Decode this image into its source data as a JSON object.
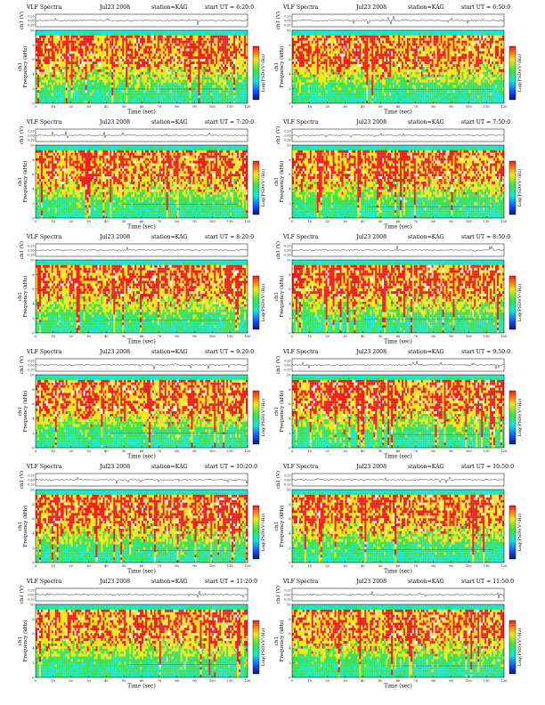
{
  "header_common": {
    "title": "VLF Spectra",
    "station": "station=KAG",
    "start_prefix": "start UT ="
  },
  "axis": {
    "ch1_label": "ch1 (V)",
    "freq_label": "Frequency (kHz)",
    "freq_ch_label": "ch1",
    "time_label": "Time (sec)",
    "colorbar_label": "Log(PSD)(V²/Hz)",
    "ch1_ticks": [
      "0.20",
      "0.00",
      "-0.20"
    ],
    "time_ticks": [
      0,
      10,
      20,
      30,
      40,
      50,
      60,
      70,
      80,
      90,
      100,
      110,
      120
    ],
    "freq_ticks": [
      0,
      2,
      4,
      6,
      8,
      10
    ],
    "xlim": [
      0,
      120
    ],
    "ylim": [
      0,
      10
    ],
    "ch1_lim": [
      -0.2,
      0.2
    ]
  },
  "colors": {
    "low": "#1a4cff",
    "cyan": "#16e6d4",
    "green": "#3fe04a",
    "yellow": "#f2e61c",
    "red": "#ee1c1c",
    "white_fleck": "#ffffff",
    "dark": "#0a1a66"
  },
  "chart_data": [
    {
      "type": "heatmap",
      "date": "Jul23 2008",
      "start_ut": "6:20:0",
      "signal": "ch1",
      "xlim": [
        0,
        120
      ],
      "ylim": [
        0,
        10
      ]
    },
    {
      "type": "heatmap",
      "date": "Jul23 2008",
      "start_ut": "6:50:0",
      "signal": "ch1",
      "xlim": [
        0,
        120
      ],
      "ylim": [
        0,
        10
      ]
    },
    {
      "type": "heatmap",
      "date": "Jul23 2008",
      "start_ut": "7:20:0",
      "signal": "ch1",
      "xlim": [
        0,
        120
      ],
      "ylim": [
        0,
        10
      ]
    },
    {
      "type": "heatmap",
      "date": "Jul23 2008",
      "start_ut": "7:50:0",
      "signal": "ch1",
      "xlim": [
        0,
        120
      ],
      "ylim": [
        0,
        10
      ]
    },
    {
      "type": "heatmap",
      "date": "Jul23 2008",
      "start_ut": "8:20:0",
      "signal": "ch1",
      "xlim": [
        0,
        120
      ],
      "ylim": [
        0,
        10
      ]
    },
    {
      "type": "heatmap",
      "date": "Jul23 2008",
      "start_ut": "8:50:0",
      "signal": "ch1",
      "xlim": [
        0,
        120
      ],
      "ylim": [
        0,
        10
      ]
    },
    {
      "type": "heatmap",
      "date": "Jul23 2008",
      "start_ut": "9:20:0",
      "signal": "ch1",
      "xlim": [
        0,
        120
      ],
      "ylim": [
        0,
        10
      ]
    },
    {
      "type": "heatmap",
      "date": "Jul23 2008",
      "start_ut": "9:50:0",
      "signal": "ch1",
      "xlim": [
        0,
        120
      ],
      "ylim": [
        0,
        10
      ]
    },
    {
      "type": "heatmap",
      "date": "Jul23 2008",
      "start_ut": "10:20:0",
      "signal": "ch1",
      "xlim": [
        0,
        120
      ],
      "ylim": [
        0,
        10
      ]
    },
    {
      "type": "heatmap",
      "date": "Jul23 2008",
      "start_ut": "10:50:0",
      "signal": "ch1",
      "xlim": [
        0,
        120
      ],
      "ylim": [
        0,
        10
      ]
    },
    {
      "type": "heatmap",
      "date": "Jul23 2008",
      "start_ut": "11:20:0",
      "signal": "ch1",
      "xlim": [
        0,
        120
      ],
      "ylim": [
        0,
        10
      ]
    },
    {
      "type": "heatmap",
      "date": "Jul23 2008",
      "start_ut": "11:50:0",
      "signal": "ch1",
      "xlim": [
        0,
        120
      ],
      "ylim": [
        0,
        10
      ]
    }
  ]
}
